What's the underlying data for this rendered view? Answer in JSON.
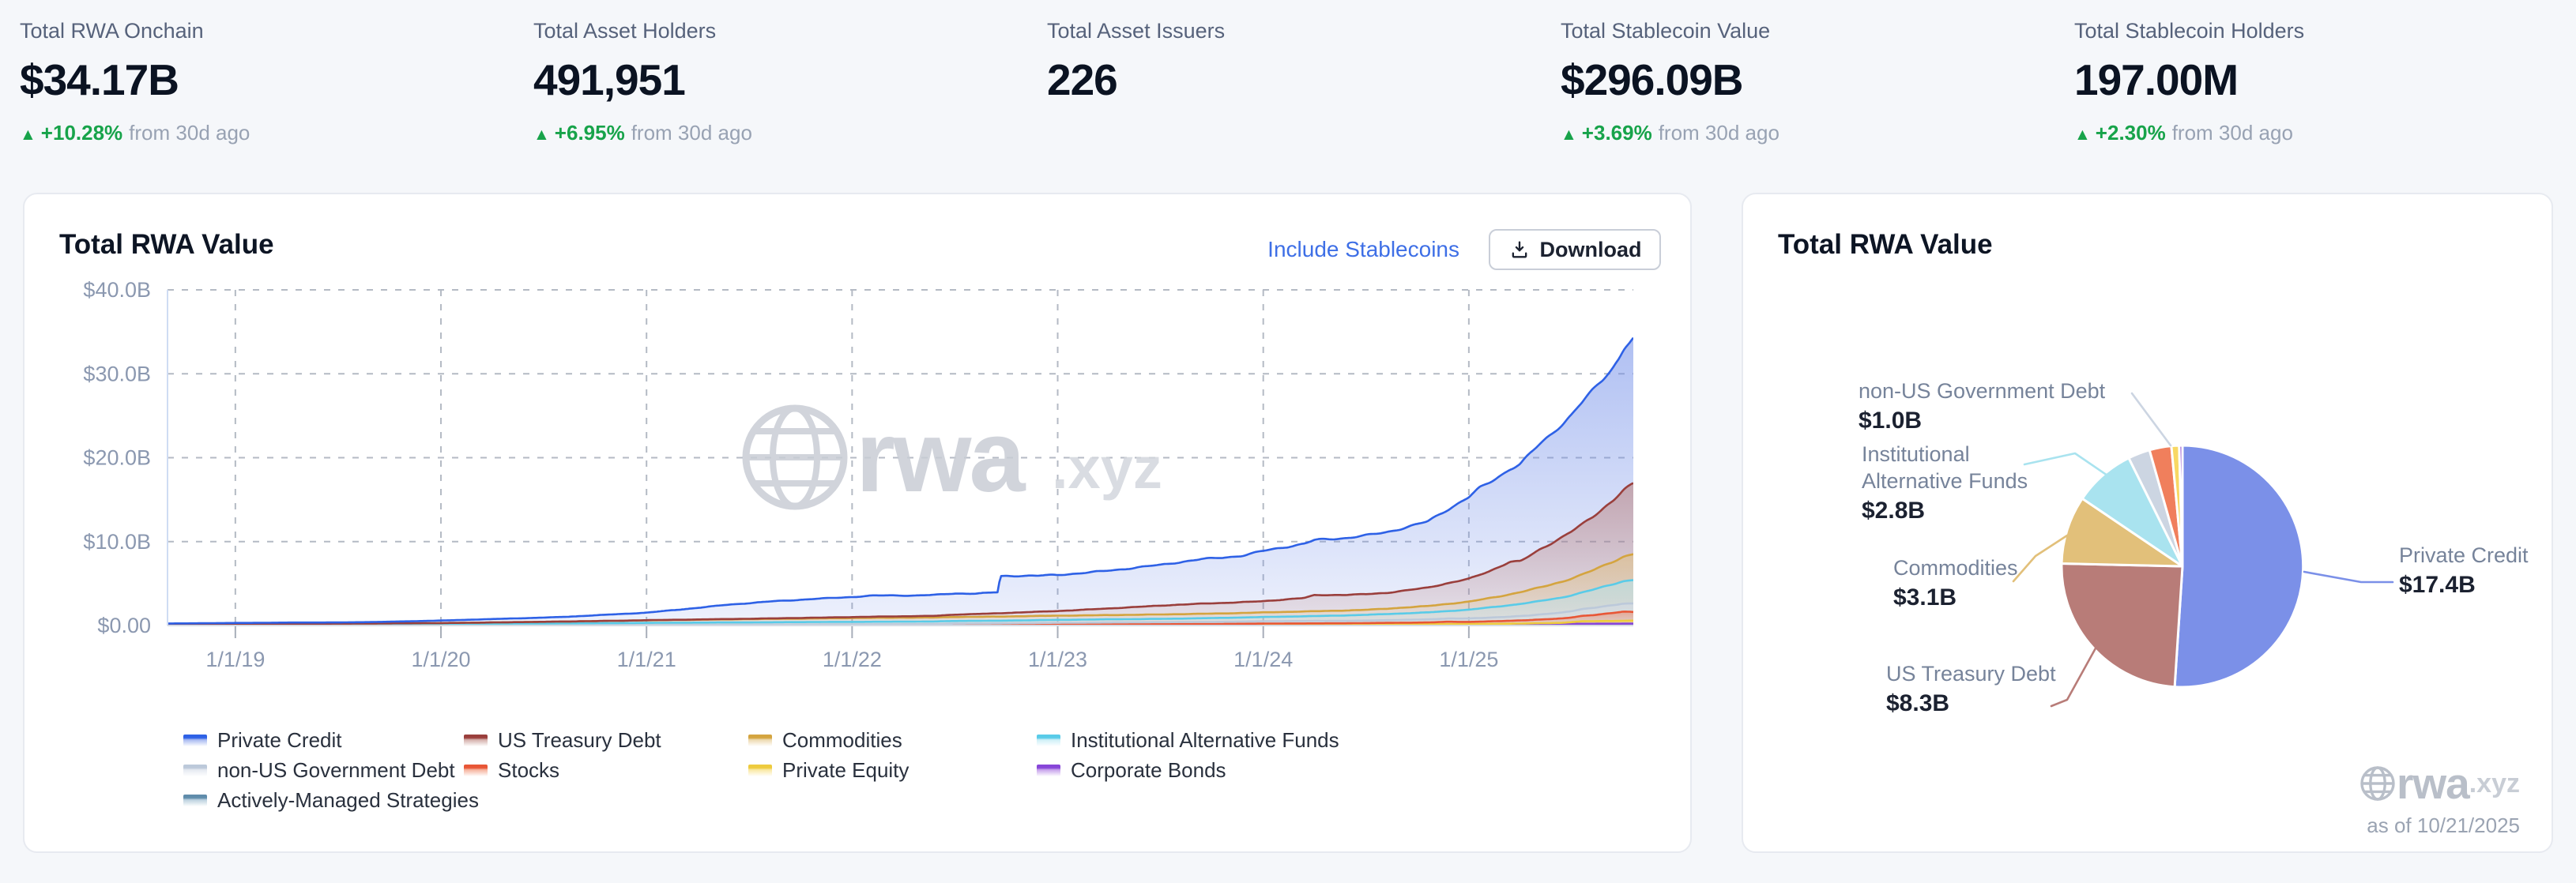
{
  "ui": {
    "arrow_up": "▲"
  },
  "stats": [
    {
      "label": "Total RWA Onchain",
      "value": "$34.17B",
      "delta": "+10.28%",
      "delta_note": "from 30d ago"
    },
    {
      "label": "Total Asset Holders",
      "value": "491,951",
      "delta": "+6.95%",
      "delta_note": "from 30d ago"
    },
    {
      "label": "Total Asset Issuers",
      "value": "226"
    },
    {
      "label": "Total Stablecoin Value",
      "value": "$296.09B",
      "delta": "+3.69%",
      "delta_note": "from 30d ago"
    },
    {
      "label": "Total Stablecoin Holders",
      "value": "197.00M",
      "delta": "+2.30%",
      "delta_note": "from 30d ago"
    }
  ],
  "line_card": {
    "title": "Total RWA Value",
    "include_link": "Include Stablecoins",
    "download_label": "Download",
    "watermark_main": "rwa",
    "watermark_suffix": ".xyz"
  },
  "pie_card": {
    "title": "Total RWA Value",
    "watermark_main": "rwa",
    "watermark_suffix": ".xyz"
  },
  "legend": [
    "Private Credit",
    "US Treasury Debt",
    "Commodities",
    "Institutional Alternative Funds",
    "non-US Government Debt",
    "Stocks",
    "Private Equity",
    "Corporate Bonds",
    "Actively-Managed Strategies"
  ],
  "chart_data": [
    {
      "type": "area",
      "title": "Total RWA Value",
      "x_range": [
        2018.67,
        2025.8
      ],
      "ylim": [
        0,
        40
      ],
      "grid": true,
      "y_ticks": [
        {
          "v": 0,
          "label": "$0.00"
        },
        {
          "v": 10,
          "label": "$10.0B"
        },
        {
          "v": 20,
          "label": "$20.0B"
        },
        {
          "v": 30,
          "label": "$30.0B"
        },
        {
          "v": 40,
          "label": "$40.0B"
        }
      ],
      "x_ticks": [
        {
          "t": 2019,
          "label": "1/1/19"
        },
        {
          "t": 2020,
          "label": "1/1/20"
        },
        {
          "t": 2021,
          "label": "1/1/21"
        },
        {
          "t": 2022,
          "label": "1/1/22"
        },
        {
          "t": 2023,
          "label": "1/1/23"
        },
        {
          "t": 2024,
          "label": "1/1/24"
        },
        {
          "t": 2025,
          "label": "1/1/25"
        }
      ],
      "series": [
        {
          "name": "Actively-Managed Strategies",
          "color": "#5f8cab",
          "fill": "#8fb3c9",
          "points": [
            [
              2018.67,
              0
            ],
            [
              2020.5,
              0
            ],
            [
              2021.0,
              0.02
            ],
            [
              2023,
              0.03
            ],
            [
              2025,
              0.05
            ],
            [
              2025.8,
              0.07
            ]
          ]
        },
        {
          "name": "Corporate Bonds",
          "color": "#8746d8",
          "fill": "#a468e0",
          "points": [
            [
              2018.67,
              0
            ],
            [
              2022.4,
              0
            ],
            [
              2022.5,
              0.05
            ],
            [
              2023,
              0.06
            ],
            [
              2024,
              0.08
            ],
            [
              2025,
              0.1
            ],
            [
              2025.8,
              0.16
            ]
          ]
        },
        {
          "name": "Private Equity",
          "color": "#eecb3d",
          "fill": "#f6da68",
          "points": [
            [
              2018.67,
              0
            ],
            [
              2024.9,
              0.02
            ],
            [
              2025.2,
              0.05
            ],
            [
              2025.45,
              0.12
            ],
            [
              2025.55,
              0.3
            ],
            [
              2025.7,
              0.33
            ],
            [
              2025.8,
              0.36
            ]
          ]
        },
        {
          "name": "Stocks",
          "color": "#e85636",
          "fill": "#f0825f",
          "points": [
            [
              2018.67,
              0
            ],
            [
              2021,
              0.01
            ],
            [
              2022,
              0.02
            ],
            [
              2023,
              0.04
            ],
            [
              2023.8,
              0.06
            ],
            [
              2024.0,
              0.09
            ],
            [
              2024.4,
              0.12
            ],
            [
              2024.8,
              0.2
            ],
            [
              2024.9,
              0.28
            ],
            [
              2025.0,
              0.25
            ],
            [
              2025.15,
              0.32
            ],
            [
              2025.3,
              0.4
            ],
            [
              2025.5,
              0.55
            ],
            [
              2025.62,
              0.75
            ],
            [
              2025.7,
              0.95
            ],
            [
              2025.75,
              1.1
            ],
            [
              2025.8,
              1.05
            ]
          ]
        },
        {
          "name": "non-US Government Debt",
          "color": "#bcc9da",
          "fill": "#d4dce8",
          "points": [
            [
              2018.67,
              0.01
            ],
            [
              2020,
              0.02
            ],
            [
              2021,
              0.04
            ],
            [
              2022,
              0.08
            ],
            [
              2022.7,
              0.12
            ],
            [
              2023,
              0.18
            ],
            [
              2023.5,
              0.22
            ],
            [
              2024,
              0.28
            ],
            [
              2024.5,
              0.3
            ],
            [
              2024.9,
              0.38
            ],
            [
              2025.1,
              0.45
            ],
            [
              2025.3,
              0.55
            ],
            [
              2025.5,
              0.75
            ],
            [
              2025.65,
              0.9
            ],
            [
              2025.8,
              1.0
            ]
          ]
        },
        {
          "name": "Institutional Alternative Funds",
          "color": "#59cbe8",
          "fill": "#aee6f2",
          "points": [
            [
              2018.67,
              0.12
            ],
            [
              2019.5,
              0.14
            ],
            [
              2020,
              0.16
            ],
            [
              2020.5,
              0.2
            ],
            [
              2021,
              0.24
            ],
            [
              2021.5,
              0.27
            ],
            [
              2022,
              0.3
            ],
            [
              2022.7,
              0.32
            ],
            [
              2023,
              0.35
            ],
            [
              2023.5,
              0.4
            ],
            [
              2024,
              0.5
            ],
            [
              2024.3,
              0.6
            ],
            [
              2024.6,
              0.72
            ],
            [
              2024.9,
              0.9
            ],
            [
              2025.0,
              1.05
            ],
            [
              2025.2,
              1.35
            ],
            [
              2025.4,
              1.7
            ],
            [
              2025.55,
              2.0
            ],
            [
              2025.7,
              2.5
            ],
            [
              2025.8,
              2.8
            ]
          ]
        },
        {
          "name": "Commodities",
          "color": "#d4a43f",
          "fill": "#e2c17c",
          "points": [
            [
              2018.67,
              0.03
            ],
            [
              2019.5,
              0.06
            ],
            [
              2020,
              0.1
            ],
            [
              2020.5,
              0.2
            ],
            [
              2021,
              0.3
            ],
            [
              2021.5,
              0.38
            ],
            [
              2022,
              0.45
            ],
            [
              2022.5,
              0.48
            ],
            [
              2023,
              0.5
            ],
            [
              2023.5,
              0.52
            ],
            [
              2024,
              0.55
            ],
            [
              2024.5,
              0.6
            ],
            [
              2024.8,
              0.75
            ],
            [
              2025.0,
              0.95
            ],
            [
              2025.2,
              1.3
            ],
            [
              2025.4,
              1.75
            ],
            [
              2025.55,
              2.1
            ],
            [
              2025.7,
              2.7
            ],
            [
              2025.8,
              3.1
            ]
          ]
        },
        {
          "name": "US Treasury Debt",
          "color": "#9a3f3c",
          "fill": "#b97c76",
          "points": [
            [
              2018.67,
              0
            ],
            [
              2020.9,
              0
            ],
            [
              2021.0,
              0.02
            ],
            [
              2021.5,
              0.05
            ],
            [
              2022.0,
              0.12
            ],
            [
              2022.4,
              0.2
            ],
            [
              2022.5,
              0.28
            ],
            [
              2023.0,
              0.55
            ],
            [
              2023.2,
              0.75
            ],
            [
              2023.5,
              1.05
            ],
            [
              2023.7,
              1.2
            ],
            [
              2024.0,
              1.35
            ],
            [
              2024.2,
              1.6
            ],
            [
              2024.25,
              1.9
            ],
            [
              2024.4,
              1.85
            ],
            [
              2024.6,
              1.9
            ],
            [
              2024.8,
              2.2
            ],
            [
              2025.0,
              2.7
            ],
            [
              2025.1,
              3.2
            ],
            [
              2025.2,
              3.9
            ],
            [
              2025.25,
              3.7
            ],
            [
              2025.35,
              4.6
            ],
            [
              2025.5,
              5.6
            ],
            [
              2025.6,
              6.3
            ],
            [
              2025.7,
              7.2
            ],
            [
              2025.75,
              7.9
            ],
            [
              2025.8,
              8.35
            ]
          ]
        },
        {
          "name": "Private Credit",
          "color": "#2e61e6",
          "fill": "#6f8ce8",
          "points": [
            [
              2018.67,
              0.08
            ],
            [
              2019,
              0.12
            ],
            [
              2019.3,
              0.15
            ],
            [
              2019.5,
              0.14
            ],
            [
              2019.7,
              0.18
            ],
            [
              2020,
              0.3
            ],
            [
              2020.3,
              0.42
            ],
            [
              2020.6,
              0.55
            ],
            [
              2021,
              0.9
            ],
            [
              2021.2,
              1.3
            ],
            [
              2021.4,
              1.7
            ],
            [
              2021.6,
              2.0
            ],
            [
              2021.8,
              2.25
            ],
            [
              2022.0,
              2.4
            ],
            [
              2022.1,
              2.5
            ],
            [
              2022.3,
              2.45
            ],
            [
              2022.5,
              2.55
            ],
            [
              2022.6,
              2.45
            ],
            [
              2022.71,
              2.5
            ],
            [
              2022.72,
              4.4
            ],
            [
              2022.8,
              4.35
            ],
            [
              2022.9,
              4.25
            ],
            [
              2023.0,
              4.3
            ],
            [
              2023.2,
              4.5
            ],
            [
              2023.4,
              4.7
            ],
            [
              2023.5,
              4.8
            ],
            [
              2023.7,
              5.3
            ],
            [
              2023.9,
              5.6
            ],
            [
              2024.0,
              6.0
            ],
            [
              2024.2,
              6.4
            ],
            [
              2024.4,
              6.8
            ],
            [
              2024.6,
              7.3
            ],
            [
              2024.8,
              7.8
            ],
            [
              2025.0,
              9.7
            ],
            [
              2025.05,
              10.3
            ],
            [
              2025.1,
              10.6
            ],
            [
              2025.2,
              11.2
            ],
            [
              2025.3,
              12.2
            ],
            [
              2025.4,
              13.0
            ],
            [
              2025.5,
              13.8
            ],
            [
              2025.6,
              14.9
            ],
            [
              2025.65,
              15.3
            ],
            [
              2025.7,
              15.9
            ],
            [
              2025.73,
              16.3
            ],
            [
              2025.76,
              17.0
            ],
            [
              2025.8,
              17.4
            ]
          ]
        }
      ]
    },
    {
      "type": "pie",
      "title": "Total RWA Value",
      "as_of": "as of 10/21/2025",
      "slices": [
        {
          "label": "Private Credit",
          "value": 17.4,
          "display": "$17.4B",
          "color": "#7b90e8",
          "labeled": true
        },
        {
          "label": "US Treasury Debt",
          "value": 8.3,
          "display": "$8.3B",
          "color": "#b87c78",
          "labeled": true
        },
        {
          "label": "Commodities",
          "value": 3.1,
          "display": "$3.1B",
          "color": "#e2c07a",
          "labeled": true
        },
        {
          "label": "Institutional Alternative Funds",
          "value": 2.8,
          "display": "$2.8B",
          "color": "#a9e3ef",
          "labeled": true,
          "lines": [
            "Institutional",
            "Alternative Funds"
          ]
        },
        {
          "label": "non-US Government Debt",
          "value": 1.0,
          "display": "$1.0B",
          "color": "#ccd5e2",
          "labeled": true
        },
        {
          "label": "Stocks",
          "value": 1.0,
          "color": "#f07f5c",
          "labeled": false
        },
        {
          "label": "Private Equity",
          "value": 0.35,
          "color": "#f8d863",
          "labeled": false
        },
        {
          "label": "Corporate Bonds",
          "value": 0.15,
          "color": "#9a5ad2",
          "labeled": false
        }
      ]
    }
  ]
}
